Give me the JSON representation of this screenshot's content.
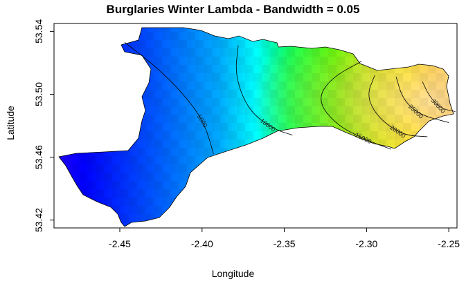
{
  "chart_data": {
    "type": "heatmap",
    "title": "Burglaries Winter Lambda - Bandwidth = 0.05",
    "xlabel": "Longitude",
    "ylabel": "Latitude",
    "xlim": [
      -2.49,
      -2.245
    ],
    "ylim": [
      53.415,
      53.545
    ],
    "x_ticks": [
      -2.45,
      -2.4,
      -2.35,
      -2.3,
      -2.25
    ],
    "x_tick_labels": [
      "-2.45",
      "-2.40",
      "-2.35",
      "-2.30",
      "-2.25"
    ],
    "y_ticks": [
      53.42,
      53.46,
      53.5,
      53.54
    ],
    "y_tick_labels": [
      "53.42",
      "53.46",
      "53.50",
      "53.54"
    ],
    "color_scale": [
      "#6a00ff",
      "#0000ff",
      "#0055ff",
      "#00aaff",
      "#00ffff",
      "#00ff66",
      "#33ff00",
      "#aaff00",
      "#ffff00",
      "#ffcc55",
      "#ffe0a0"
    ],
    "value_range": [
      0,
      35000
    ],
    "contours": [
      {
        "level": 5000,
        "label": "5000",
        "points": [
          [
            -2.447,
            53.533
          ],
          [
            -2.425,
            53.515
          ],
          [
            -2.407,
            53.495
          ],
          [
            -2.398,
            53.48
          ],
          [
            -2.393,
            53.462
          ]
        ]
      },
      {
        "level": 10000,
        "label": "10000",
        "points": [
          [
            -2.378,
            53.531
          ],
          [
            -2.38,
            53.512
          ],
          [
            -2.372,
            53.49
          ],
          [
            -2.357,
            53.478
          ],
          [
            -2.345,
            53.474
          ]
        ]
      },
      {
        "level": 15000,
        "label": "15000",
        "points": [
          [
            -2.303,
            53.521
          ],
          [
            -2.322,
            53.51
          ],
          [
            -2.33,
            53.496
          ],
          [
            -2.318,
            53.48
          ],
          [
            -2.298,
            53.47
          ],
          [
            -2.285,
            53.465
          ]
        ]
      },
      {
        "level": 20000,
        "label": "20000",
        "points": [
          [
            -2.295,
            53.512
          ],
          [
            -2.3,
            53.499
          ],
          [
            -2.293,
            53.485
          ],
          [
            -2.278,
            53.474
          ],
          [
            -2.263,
            53.473
          ]
        ]
      },
      {
        "level": 25000,
        "label": "25000",
        "points": [
          [
            -2.282,
            53.511
          ],
          [
            -2.278,
            53.497
          ],
          [
            -2.268,
            53.487
          ],
          [
            -2.25,
            53.482
          ]
        ]
      },
      {
        "level": 30000,
        "label": "30000",
        "points": [
          [
            -2.266,
            53.508
          ],
          [
            -2.262,
            53.499
          ],
          [
            -2.255,
            53.491
          ],
          [
            -2.246,
            53.489
          ]
        ]
      }
    ],
    "grid": false,
    "legend": "none"
  }
}
